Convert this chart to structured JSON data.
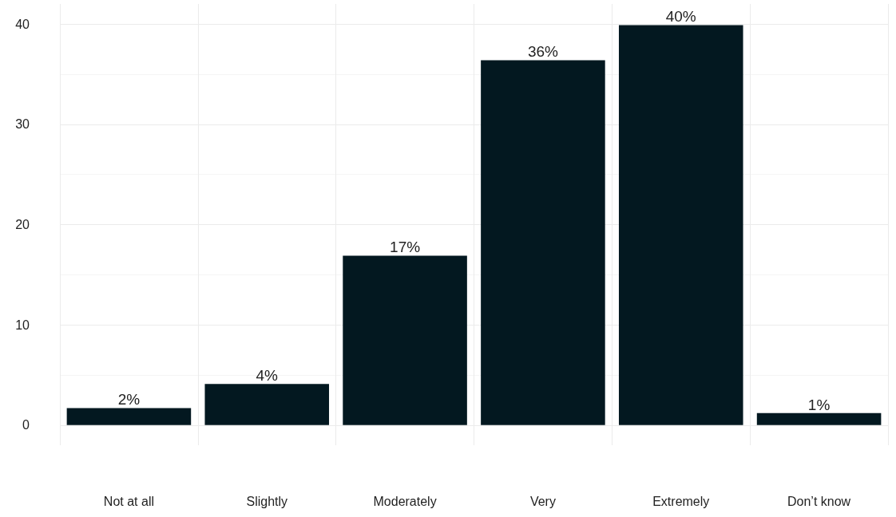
{
  "chart_data": {
    "type": "bar",
    "categories": [
      "Not at all",
      "Slightly",
      "Moderately",
      "Very",
      "Extremely",
      "Don’t know"
    ],
    "values": [
      1.7,
      4.1,
      16.9,
      36.4,
      39.9,
      1.2
    ],
    "value_labels": [
      "2%",
      "4%",
      "17%",
      "36%",
      "40%",
      "1%"
    ],
    "color": "#031820",
    "ylim": [
      -2,
      42
    ],
    "yticks": [
      0,
      10,
      20,
      30,
      40
    ],
    "grid": true
  }
}
